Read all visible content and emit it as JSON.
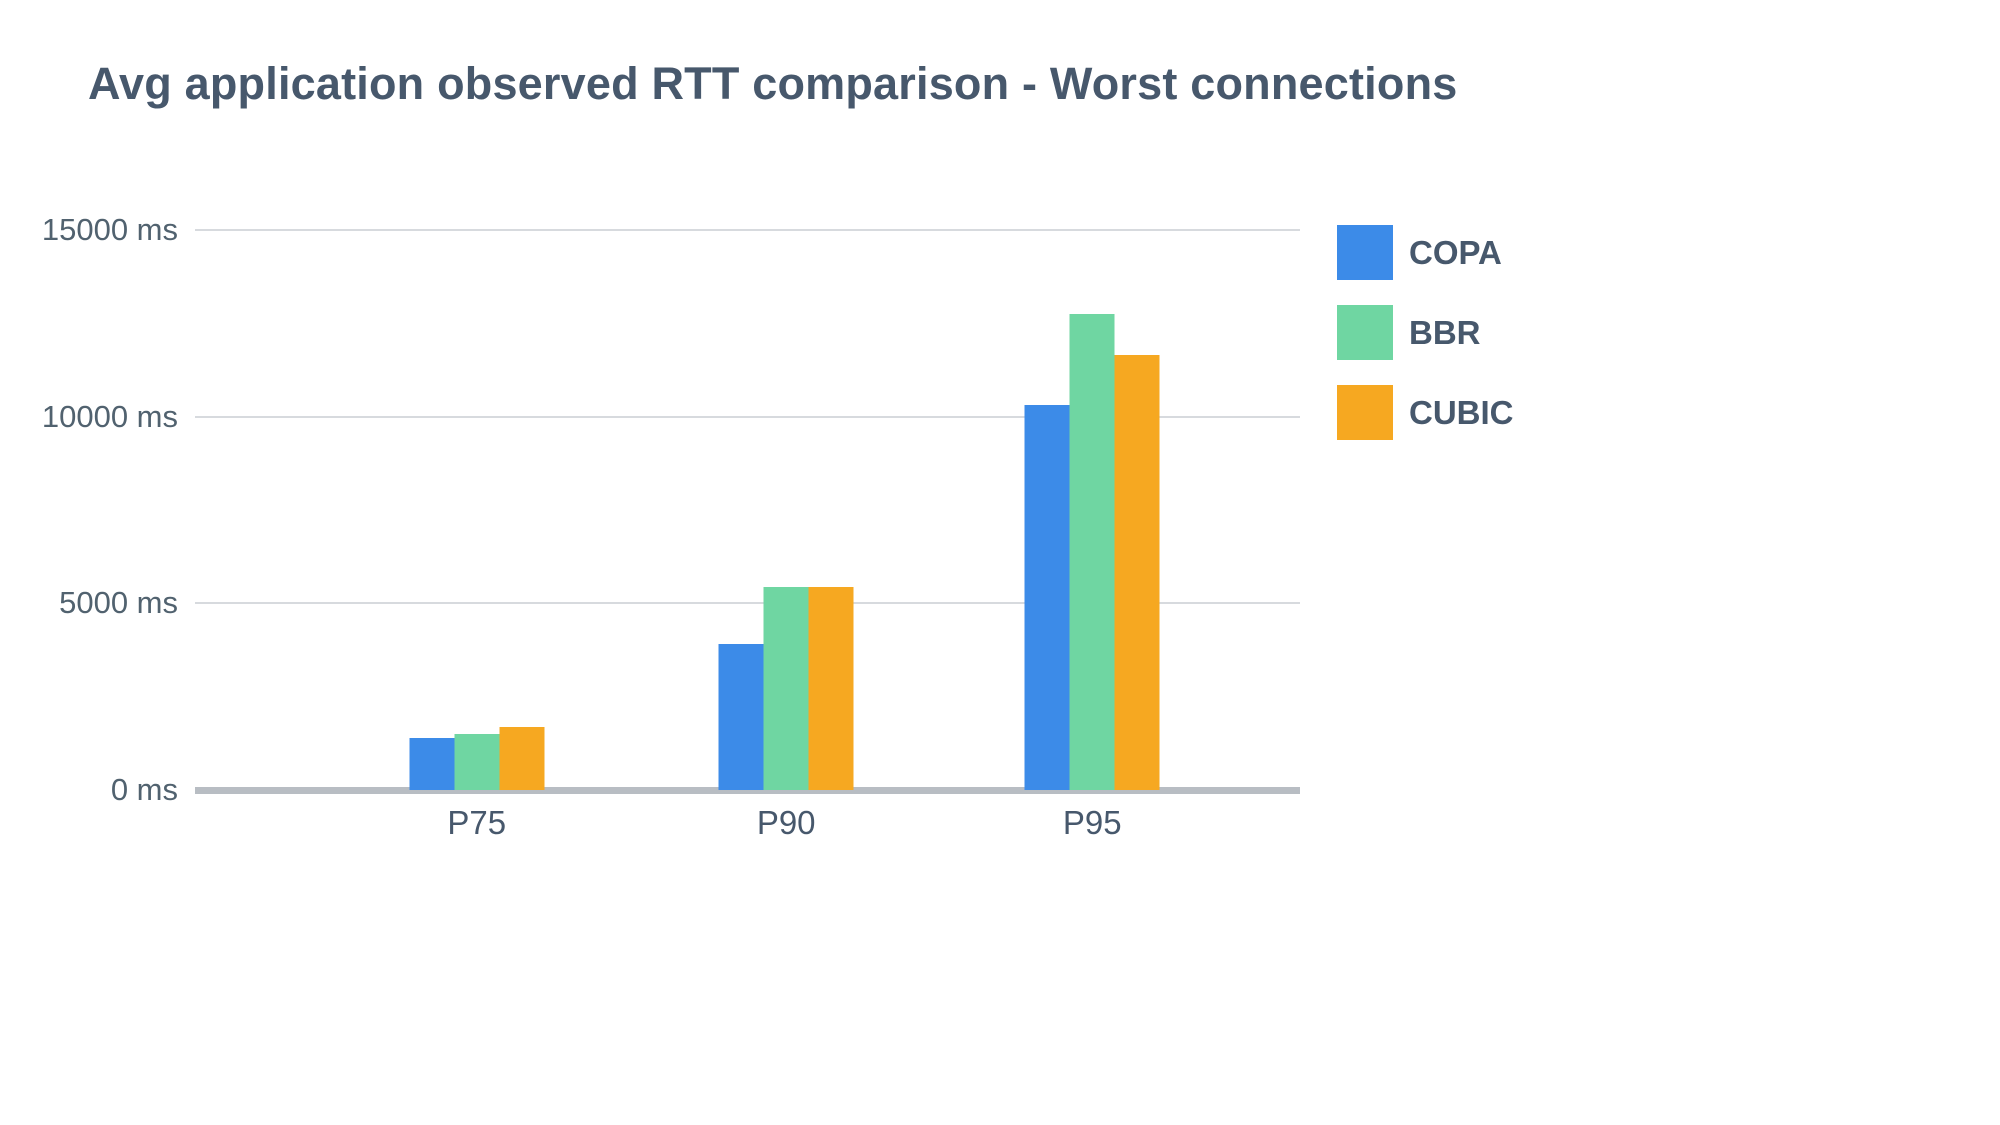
{
  "title": "Avg application observed RTT comparison - Worst connections",
  "chart_data": {
    "type": "bar",
    "title": "Avg application observed RTT comparison - Worst connections",
    "categories": [
      "P75",
      "P90",
      "P95"
    ],
    "series": [
      {
        "name": "COPA",
        "color": "#3C8BE8",
        "values": [
          1400,
          3900,
          10300
        ]
      },
      {
        "name": "BBR",
        "color": "#6FD6A2",
        "values": [
          1500,
          5450,
          12750
        ]
      },
      {
        "name": "CUBIC",
        "color": "#F6A821",
        "values": [
          1700,
          5450,
          11650
        ]
      }
    ],
    "xlabel": "",
    "ylabel": "",
    "ylim": [
      0,
      15000
    ],
    "yticks": [
      0,
      5000,
      10000,
      15000
    ],
    "ytick_labels": [
      "0 ms",
      "5000 ms",
      "10000 ms",
      "15000 ms"
    ],
    "grid": true,
    "legend_position": "right"
  }
}
